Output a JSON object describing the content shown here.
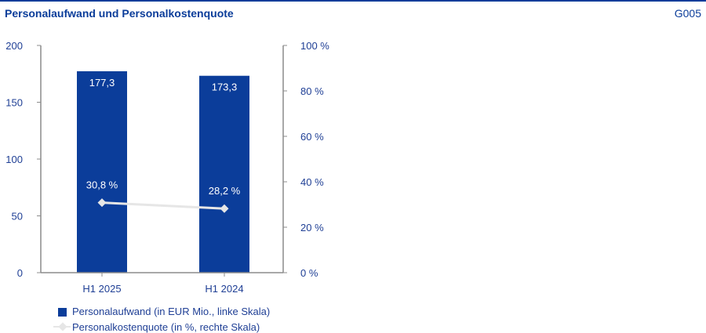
{
  "header": {
    "title": "Personalaufwand und Personalkostenquote",
    "code": "G005"
  },
  "colors": {
    "bar": "#0b3d9a",
    "line": "#e6e6e6",
    "axis": "#8c8c8c",
    "text": "#1f3f95"
  },
  "chart_data": {
    "type": "bar",
    "categories": [
      "H1 2025",
      "H1 2024"
    ],
    "series": [
      {
        "name": "Personalaufwand (in EUR Mio., linke Skala)",
        "type": "bar",
        "axis": "left",
        "values": [
          177.3,
          173.3
        ],
        "labels": [
          "177,3",
          "173,3"
        ]
      },
      {
        "name": "Personalkostenquote (in %, rechte Skala)",
        "type": "line",
        "axis": "right",
        "values": [
          30.8,
          28.2
        ],
        "labels": [
          "30,8 %",
          "28,2 %"
        ]
      }
    ],
    "left_axis": {
      "ylim": [
        0,
        200
      ],
      "ticks": [
        0,
        50,
        100,
        150,
        200
      ],
      "tick_labels": [
        "0",
        "50",
        "100",
        "150",
        "200"
      ]
    },
    "right_axis": {
      "ylim": [
        0,
        100
      ],
      "ticks": [
        0,
        20,
        40,
        60,
        80,
        100
      ],
      "tick_labels": [
        "0 %",
        "20 %",
        "40 %",
        "60 %",
        "80 %",
        "100 %"
      ]
    },
    "grid": false,
    "legend": "bottom-left"
  }
}
